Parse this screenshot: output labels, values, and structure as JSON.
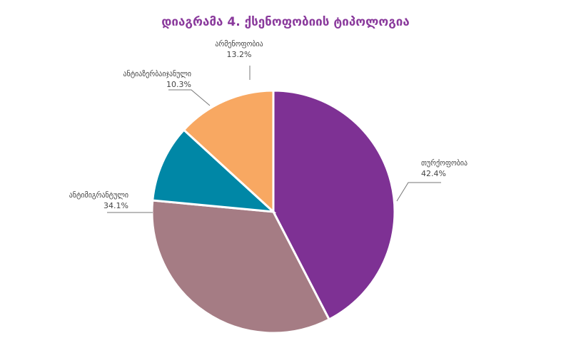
{
  "chart_data": {
    "type": "pie",
    "title": "დიაგრამა 4. ქსენოფობიის ტიპოლოგია",
    "slices": [
      {
        "name": "თურქოფობია",
        "value": 42.4,
        "label": "42.4%",
        "color": "#7e3194"
      },
      {
        "name": "ანტიმიგრანტული",
        "value": 34.1,
        "label": "34.1%",
        "color": "#a57c84"
      },
      {
        "name": "ანტიაზერბაიჯანული",
        "value": 10.3,
        "label": "10.3%",
        "color": "#0087a6"
      },
      {
        "name": "არმენოფობია",
        "value": 13.2,
        "label": "13.2%",
        "color": "#f8a862"
      }
    ]
  }
}
